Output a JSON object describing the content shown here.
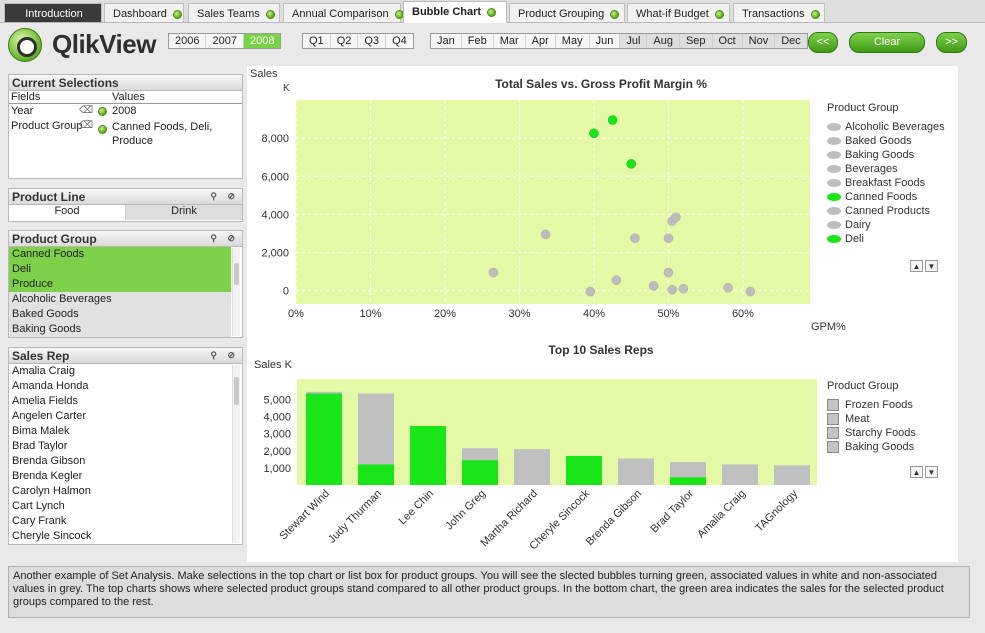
{
  "tabs": [
    {
      "label": "Introduction"
    },
    {
      "label": "Dashboard"
    },
    {
      "label": "Sales Teams"
    },
    {
      "label": "Annual Comparison"
    },
    {
      "label": "Bubble Chart"
    },
    {
      "label": "Product Grouping"
    },
    {
      "label": "What-if Budget"
    },
    {
      "label": "Transactions"
    }
  ],
  "logo": {
    "text_a": "Qlik",
    "text_b": "View"
  },
  "years": [
    "2006",
    "2007",
    "2008"
  ],
  "quarters": [
    "Q1",
    "Q2",
    "Q3",
    "Q4"
  ],
  "months": [
    "Jan",
    "Feb",
    "Mar",
    "Apr",
    "May",
    "Jun",
    "Jul",
    "Aug",
    "Sep",
    "Oct",
    "Nov",
    "Dec"
  ],
  "nav": {
    "back": "<<",
    "clear": "Clear",
    "forward": ">>"
  },
  "current_selections": {
    "title": "Current Selections",
    "col_fields": "Fields",
    "col_values": "Values",
    "rows": [
      {
        "field": "Year",
        "value": "2008"
      },
      {
        "field": "Product Group",
        "value": "Canned Foods, Deli, Produce"
      }
    ]
  },
  "product_line": {
    "title": "Product Line",
    "items": [
      "Food",
      "Drink"
    ]
  },
  "product_group": {
    "title": "Product Group",
    "items": [
      "Canned Foods",
      "Deli",
      "Produce",
      "Alcoholic Beverages",
      "Baked Goods",
      "Baking Goods"
    ]
  },
  "sales_rep": {
    "title": "Sales Rep",
    "items": [
      "Amalia Craig",
      "Amanda Honda",
      "Amelia Fields",
      "Angelen Carter",
      "Bima Malek",
      "Brad Taylor",
      "Brenda Gibson",
      "Brenda Kegler",
      "Carolyn Halmon",
      "Cart Lynch",
      "Cary Frank",
      "Cheryle Sincock"
    ]
  },
  "chart_data": [
    {
      "type": "scatter",
      "title": "Total Sales vs. Gross Profit Margin %",
      "ylabel": "Sales",
      "ylabel_unit": "K",
      "xlabel": "GPM%",
      "xlim": [
        0,
        0.69
      ],
      "ylim": [
        -700,
        10000
      ],
      "xticks": [
        "0%",
        "10%",
        "20%",
        "30%",
        "40%",
        "50%",
        "60%"
      ],
      "yticks": [
        "0",
        "2,000",
        "4,000",
        "6,000",
        "8,000"
      ],
      "points": [
        {
          "x": 0.4,
          "y": 8250,
          "selected": true
        },
        {
          "x": 0.425,
          "y": 8950,
          "selected": true
        },
        {
          "x": 0.45,
          "y": 6650,
          "selected": true
        },
        {
          "x": 0.265,
          "y": 950,
          "selected": false
        },
        {
          "x": 0.335,
          "y": 2950,
          "selected": false
        },
        {
          "x": 0.395,
          "y": -50,
          "selected": false
        },
        {
          "x": 0.43,
          "y": 550,
          "selected": false
        },
        {
          "x": 0.455,
          "y": 2750,
          "selected": false
        },
        {
          "x": 0.48,
          "y": 250,
          "selected": false
        },
        {
          "x": 0.5,
          "y": 950,
          "selected": false
        },
        {
          "x": 0.5,
          "y": 2750,
          "selected": false
        },
        {
          "x": 0.505,
          "y": 3650,
          "selected": false
        },
        {
          "x": 0.51,
          "y": 3850,
          "selected": false
        },
        {
          "x": 0.505,
          "y": 50,
          "selected": false
        },
        {
          "x": 0.52,
          "y": 100,
          "selected": false
        },
        {
          "x": 0.58,
          "y": 150,
          "selected": false
        },
        {
          "x": 0.61,
          "y": -50,
          "selected": false
        }
      ],
      "legend_title": "Product Group",
      "legend": [
        {
          "name": "Alcoholic Beverages",
          "selected": false
        },
        {
          "name": "Baked Goods",
          "selected": false
        },
        {
          "name": "Baking Goods",
          "selected": false
        },
        {
          "name": "Beverages",
          "selected": false
        },
        {
          "name": "Breakfast Foods",
          "selected": false
        },
        {
          "name": "Canned Foods",
          "selected": true
        },
        {
          "name": "Canned Products",
          "selected": false
        },
        {
          "name": "Dairy",
          "selected": false
        },
        {
          "name": "Deli",
          "selected": true
        }
      ]
    },
    {
      "type": "bar",
      "title": "Top 10  Sales Reps",
      "ylabel": "Sales K",
      "ylim": [
        0,
        6200
      ],
      "yticks": [
        "1,000",
        "2,000",
        "3,000",
        "4,000",
        "5,000"
      ],
      "categories": [
        "Stewart Wind",
        "Judy Thurman",
        "Lee Chin",
        "John Greg",
        "Martha Richard",
        "Cheryle Sincock",
        "Brenda Gibson",
        "Brad Taylor",
        "Amalia Craig",
        "TAGnology"
      ],
      "series": [
        {
          "name": "Selected product groups",
          "values": [
            5350,
            1200,
            3450,
            1450,
            0,
            1700,
            0,
            450,
            0,
            0
          ]
        },
        {
          "name": "Total",
          "values": [
            5450,
            5350,
            3450,
            2150,
            2100,
            1700,
            1550,
            1350,
            1200,
            1150
          ]
        }
      ],
      "legend_title": "Product Group",
      "legend": [
        "Frozen Foods",
        "Meat",
        "Starchy Foods",
        "Baking Goods"
      ]
    }
  ],
  "footer_text": "Another example of Set Analysis. Make selections in the top chart or list box for product groups. You will see the slected bubbles turning green, associated values in white and non-associated values in grey. The top charts shows where selected product groups stand compared to all other product groups. In the bottom chart, the green area indicates the sales for the selected product groups compared to the rest.",
  "colors": {
    "selected": "#19e619",
    "plot_bg": "#e4f9a6",
    "other": "#bdbdbd",
    "list_selected": "#7ed04a"
  }
}
